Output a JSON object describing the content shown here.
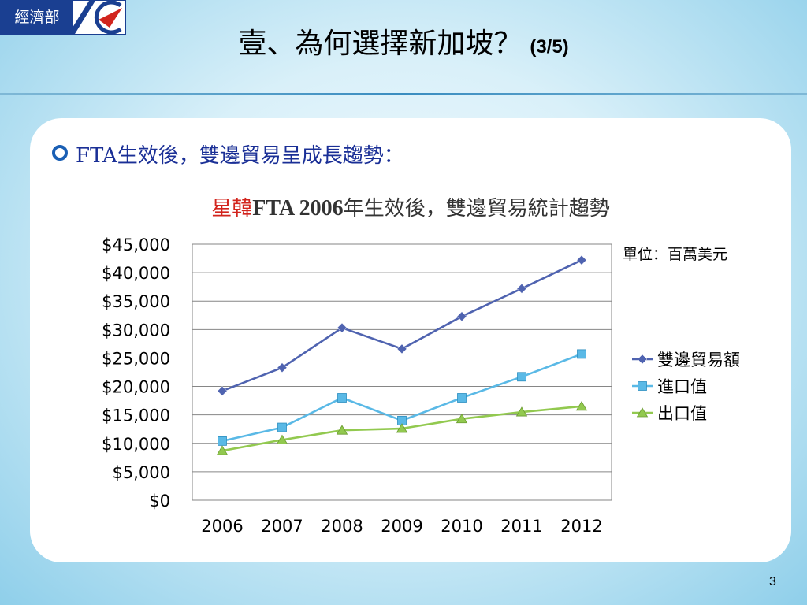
{
  "logo": {
    "text": "經濟部"
  },
  "header": {
    "title": "壹、為何選擇新加坡？",
    "title_suffix": "(3/5)"
  },
  "bullet": {
    "text": "FTA生效後，雙邊貿易呈成長趨勢："
  },
  "chart_title": {
    "red": "星韓",
    "bold": "FTA 2006",
    "rest": "年生效後，雙邊貿易統計趨勢"
  },
  "unit_label": "單位：百萬美元",
  "page_number": "3",
  "chart_data": {
    "type": "line",
    "title": "星韓FTA 2006年生效後，雙邊貿易統計趨勢",
    "x": [
      "2006",
      "2007",
      "2008",
      "2009",
      "2010",
      "2011",
      "2012"
    ],
    "ylim": [
      0,
      45000
    ],
    "y_ticks": [
      "$0",
      "$5,000",
      "$10,000",
      "$15,000",
      "$20,000",
      "$25,000",
      "$30,000",
      "$35,000",
      "$40,000",
      "$45,000"
    ],
    "grid": true,
    "legend": "right",
    "series": [
      {
        "name": "雙邊貿易額",
        "color": "#4f63b0",
        "marker": "diamond",
        "values": [
          19200,
          23300,
          30300,
          26600,
          32300,
          37200,
          42200
        ]
      },
      {
        "name": "進口值",
        "color": "#5ab9e6",
        "marker": "square",
        "values": [
          10400,
          12800,
          18000,
          14000,
          18000,
          21700,
          25700
        ]
      },
      {
        "name": "出口值",
        "color": "#92c94f",
        "marker": "triangle",
        "values": [
          8700,
          10600,
          12300,
          12600,
          14300,
          15500,
          16500
        ]
      }
    ]
  }
}
